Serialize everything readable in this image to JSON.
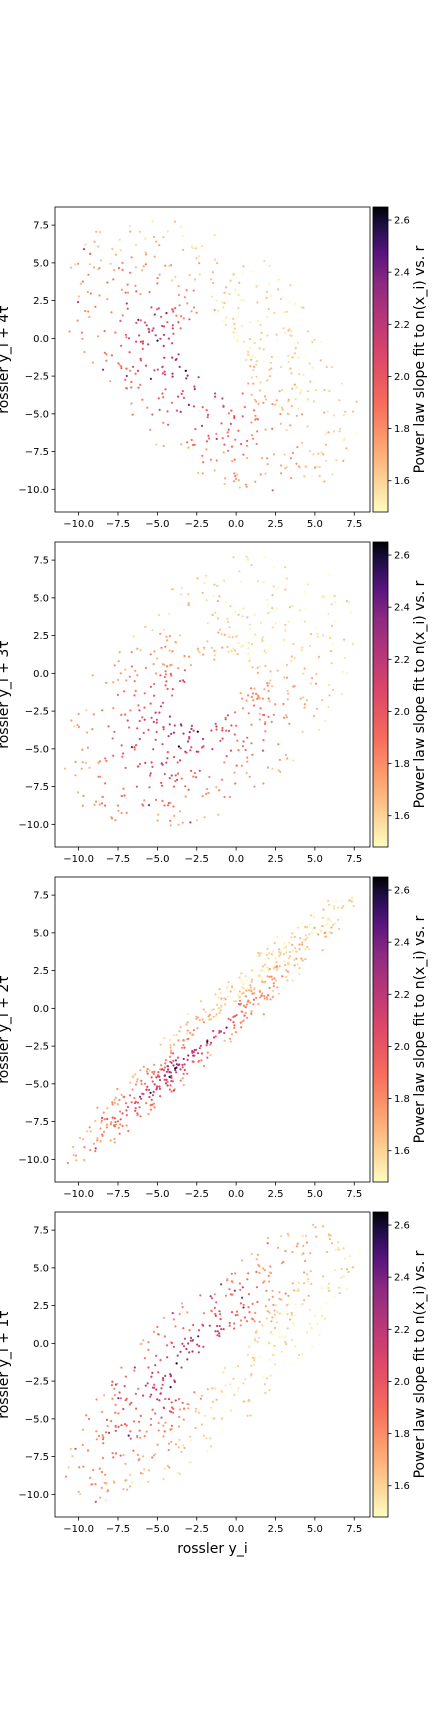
{
  "chart_data": [
    {
      "type": "scatter",
      "xlabel": "",
      "ylabel": "rossler y_i + 4τ",
      "xlim": [
        -11.5,
        8.5
      ],
      "ylim": [
        -11.5,
        8.7
      ],
      "xticks": [
        -10.0,
        -7.5,
        -5.0,
        -2.5,
        0.0,
        2.5,
        5.0,
        7.5
      ],
      "yticks": [
        -10.0,
        -7.5,
        -5.0,
        -2.5,
        0.0,
        2.5,
        5.0,
        7.5
      ],
      "colorbar": {
        "label": "Power law slope fit to n(x_i) vs. r",
        "range": [
          1.48,
          2.65
        ],
        "ticks": [
          1.6,
          1.8,
          2.0,
          2.2,
          2.4,
          2.6
        ],
        "colormap": "magma_r"
      },
      "lag": 4
    },
    {
      "type": "scatter",
      "xlabel": "",
      "ylabel": "rossler y_i + 3τ",
      "xlim": [
        -11.5,
        8.5
      ],
      "ylim": [
        -11.5,
        8.7
      ],
      "xticks": [
        -10.0,
        -7.5,
        -5.0,
        -2.5,
        0.0,
        2.5,
        5.0,
        7.5
      ],
      "yticks": [
        -10.0,
        -7.5,
        -5.0,
        -2.5,
        0.0,
        2.5,
        5.0,
        7.5
      ],
      "colorbar": {
        "label": "Power law slope fit to n(x_i) vs. r",
        "range": [
          1.48,
          2.65
        ],
        "ticks": [
          1.6,
          1.8,
          2.0,
          2.2,
          2.4,
          2.6
        ],
        "colormap": "magma_r"
      },
      "lag": 3
    },
    {
      "type": "scatter",
      "xlabel": "",
      "ylabel": "rossler y_i + 2τ",
      "xlim": [
        -11.5,
        8.5
      ],
      "ylim": [
        -11.5,
        8.7
      ],
      "xticks": [
        -10.0,
        -7.5,
        -5.0,
        -2.5,
        0.0,
        2.5,
        5.0,
        7.5
      ],
      "yticks": [
        -10.0,
        -7.5,
        -5.0,
        -2.5,
        0.0,
        2.5,
        5.0,
        7.5
      ],
      "colorbar": {
        "label": "Power law slope fit to n(x_i) vs. r",
        "range": [
          1.48,
          2.65
        ],
        "ticks": [
          1.6,
          1.8,
          2.0,
          2.2,
          2.4,
          2.6
        ],
        "colormap": "magma_r"
      },
      "lag": 2
    },
    {
      "type": "scatter",
      "xlabel": "rossler y_i",
      "ylabel": "rossler y_i + 1τ",
      "xlim": [
        -11.5,
        8.5
      ],
      "ylim": [
        -11.5,
        8.7
      ],
      "xticks": [
        -10.0,
        -7.5,
        -5.0,
        -2.5,
        0.0,
        2.5,
        5.0,
        7.5
      ],
      "yticks": [
        -10.0,
        -7.5,
        -5.0,
        -2.5,
        0.0,
        2.5,
        5.0,
        7.5
      ],
      "colorbar": {
        "label": "Power law slope fit to n(x_i) vs. r",
        "range": [
          1.48,
          2.65
        ],
        "ticks": [
          1.6,
          1.8,
          2.0,
          2.2,
          2.4,
          2.6
        ],
        "colormap": "magma_r"
      },
      "lag": 1
    }
  ]
}
